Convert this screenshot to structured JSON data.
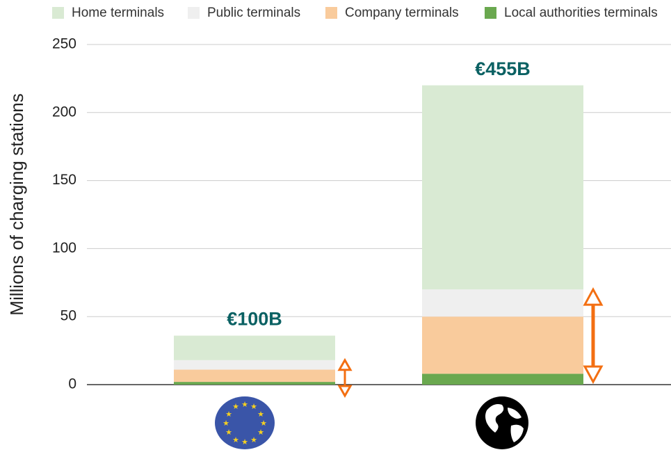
{
  "chart_data": {
    "type": "bar",
    "stacked": true,
    "y_label": "Millions of charging stations",
    "categories": [
      null,
      null
    ],
    "annotations": [
      "€100B",
      "€455B"
    ],
    "series": [
      {
        "name": "Home terminals",
        "color": "#d9ead3",
        "values": [
          18,
          150
        ]
      },
      {
        "name": "Public terminals",
        "color": "#efefef",
        "values": [
          7,
          20
        ]
      },
      {
        "name": "Company terminals",
        "color": "#f9cb9c",
        "values": [
          9,
          42
        ]
      },
      {
        "name": "Local authorities terminals",
        "color": "#6aa84f",
        "values": [
          2,
          8
        ]
      }
    ],
    "ylim": [
      0,
      250
    ],
    "yticks": [
      0,
      50,
      100,
      150,
      200,
      250
    ],
    "grid": true,
    "legend": "top"
  }
}
